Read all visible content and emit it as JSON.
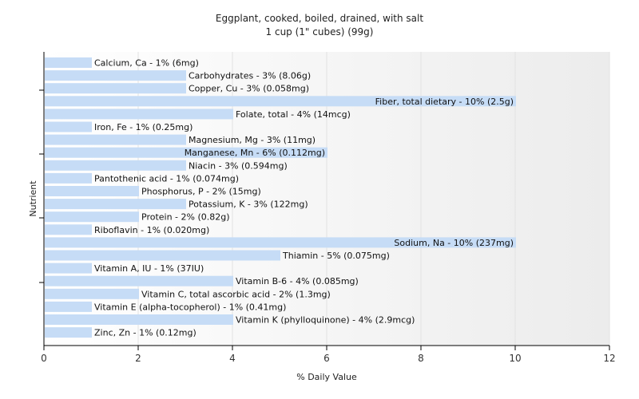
{
  "chart_data": {
    "type": "bar",
    "orientation": "horizontal",
    "title": "Eggplant, cooked, boiled, drained, with salt",
    "subtitle": "1 cup (1\" cubes) (99g)",
    "xlabel": "% Daily Value",
    "ylabel": "Nutrient",
    "xlim": [
      0,
      12
    ],
    "xticks": [
      "0",
      "2",
      "4",
      "6",
      "8",
      "10",
      "12"
    ],
    "grid": true,
    "bar_color": "#c6dcf6",
    "categories": [
      "Calcium, Ca",
      "Carbohydrates",
      "Copper, Cu",
      "Fiber, total dietary",
      "Folate, total",
      "Iron, Fe",
      "Magnesium, Mg",
      "Manganese, Mn",
      "Niacin",
      "Pantothenic acid",
      "Phosphorus, P",
      "Potassium, K",
      "Protein",
      "Riboflavin",
      "Sodium, Na",
      "Thiamin",
      "Vitamin A, IU",
      "Vitamin B-6",
      "Vitamin C, total ascorbic acid",
      "Vitamin E (alpha-tocopherol)",
      "Vitamin K (phylloquinone)",
      "Zinc, Zn"
    ],
    "values": [
      1,
      3,
      3,
      10,
      4,
      1,
      3,
      6,
      3,
      1,
      2,
      3,
      2,
      1,
      10,
      5,
      1,
      4,
      2,
      1,
      4,
      1
    ],
    "labels": [
      "Calcium, Ca - 1% (6mg)",
      "Carbohydrates - 3% (8.06g)",
      "Copper, Cu - 3% (0.058mg)",
      "Fiber, total dietary - 10% (2.5g)",
      "Folate, total - 4% (14mcg)",
      "Iron, Fe - 1% (0.25mg)",
      "Magnesium, Mg - 3% (11mg)",
      "Manganese, Mn - 6% (0.112mg)",
      "Niacin - 3% (0.594mg)",
      "Pantothenic acid - 1% (0.074mg)",
      "Phosphorus, P - 2% (15mg)",
      "Potassium, K - 3% (122mg)",
      "Protein - 2% (0.82g)",
      "Riboflavin - 1% (0.020mg)",
      "Sodium, Na - 10% (237mg)",
      "Thiamin - 5% (0.075mg)",
      "Vitamin A, IU - 1% (37IU)",
      "Vitamin B-6 - 4% (0.085mg)",
      "Vitamin C, total ascorbic acid - 2% (1.3mg)",
      "Vitamin E (alpha-tocopherol) - 1% (0.41mg)",
      "Vitamin K (phylloquinone) - 4% (2.9mcg)",
      "Zinc, Zn - 1% (0.12mg)"
    ]
  }
}
